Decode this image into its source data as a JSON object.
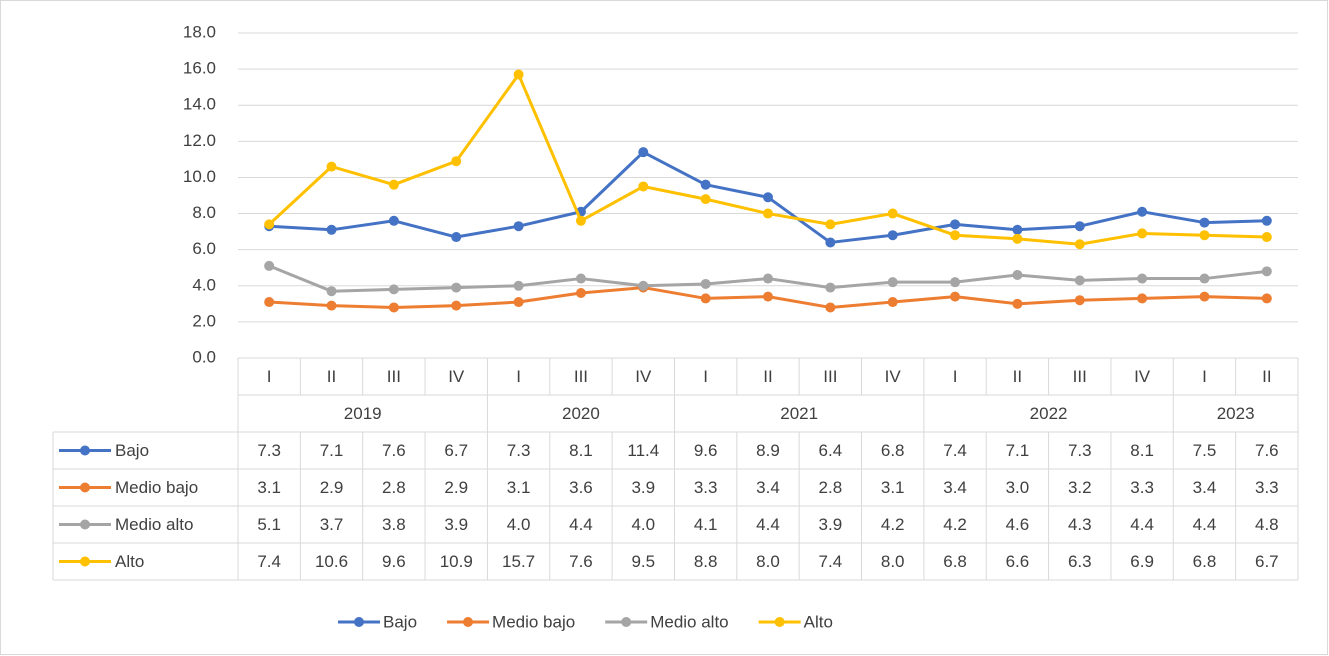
{
  "chart_data": {
    "type": "line",
    "category_groups": [
      {
        "name": "2019",
        "categories": [
          "I",
          "II",
          "III",
          "IV"
        ]
      },
      {
        "name": "2020",
        "categories": [
          "I",
          "III",
          "IV"
        ]
      },
      {
        "name": "2021",
        "categories": [
          "I",
          "II",
          "III",
          "IV"
        ]
      },
      {
        "name": "2022",
        "categories": [
          "I",
          "II",
          "III",
          "IV"
        ]
      },
      {
        "name": "2023",
        "categories": [
          "I",
          "II"
        ]
      }
    ],
    "series": [
      {
        "name": "Bajo",
        "color": "#4472c4",
        "values": [
          7.3,
          7.1,
          7.6,
          6.7,
          7.3,
          8.1,
          11.4,
          9.6,
          8.9,
          6.4,
          6.8,
          7.4,
          7.1,
          7.3,
          8.1,
          7.5,
          7.6
        ],
        "value_labels": [
          "7.3",
          "7.1",
          "7.6",
          "6.7",
          "7.3",
          "8.1",
          "11.4",
          "9.6",
          "8.9",
          "6.4",
          "6.8",
          "7.4",
          "7.1",
          "7.3",
          "8.1",
          "7.5",
          "7.6"
        ]
      },
      {
        "name": "Medio bajo",
        "color": "#ed7d31",
        "values": [
          3.1,
          2.9,
          2.8,
          2.9,
          3.1,
          3.6,
          3.9,
          3.3,
          3.4,
          2.8,
          3.1,
          3.4,
          3.0,
          3.2,
          3.3,
          3.4,
          3.3
        ],
        "value_labels": [
          "3.1",
          "2.9",
          "2.8",
          "2.9",
          "3.1",
          "3.6",
          "3.9",
          "3.3",
          "3.4",
          "2.8",
          "3.1",
          "3.4",
          "3.0",
          "3.2",
          "3.3",
          "3.4",
          "3.3"
        ]
      },
      {
        "name": "Medio alto",
        "color": "#a5a5a5",
        "values": [
          5.1,
          3.7,
          3.8,
          3.9,
          4.0,
          4.4,
          4.0,
          4.1,
          4.4,
          3.9,
          4.2,
          4.2,
          4.6,
          4.3,
          4.4,
          4.4,
          4.8
        ],
        "value_labels": [
          "5.1",
          "3.7",
          "3.8",
          "3.9",
          "4.0",
          "4.4",
          "4.0",
          "4.1",
          "4.4",
          "3.9",
          "4.2",
          "4.2",
          "4.6",
          "4.3",
          "4.4",
          "4.4",
          "4.8"
        ]
      },
      {
        "name": "Alto",
        "color": "#ffc000",
        "values": [
          7.4,
          10.6,
          9.6,
          10.9,
          15.7,
          7.6,
          9.5,
          8.8,
          8.0,
          7.4,
          8.0,
          6.8,
          6.6,
          6.3,
          6.9,
          6.8,
          6.7
        ],
        "value_labels": [
          "7.4",
          "10.6",
          "9.6",
          "10.9",
          "15.7",
          "7.6",
          "9.5",
          "8.8",
          "8.0",
          "7.4",
          "8.0",
          "6.8",
          "6.6",
          "6.3",
          "6.9",
          "6.8",
          "6.7"
        ]
      }
    ],
    "ylim": [
      0,
      18
    ],
    "yticks": [
      {
        "value": 0,
        "label": "0.0"
      },
      {
        "value": 2,
        "label": "2.0"
      },
      {
        "value": 4,
        "label": "4.0"
      },
      {
        "value": 6,
        "label": "6.0"
      },
      {
        "value": 8,
        "label": "8.0"
      },
      {
        "value": 10,
        "label": "10.0"
      },
      {
        "value": 12,
        "label": "12.0"
      },
      {
        "value": 14,
        "label": "14.0"
      },
      {
        "value": 16,
        "label": "16.0"
      },
      {
        "value": 18,
        "label": "18.0"
      }
    ],
    "grid": true,
    "legend": "bottom"
  }
}
